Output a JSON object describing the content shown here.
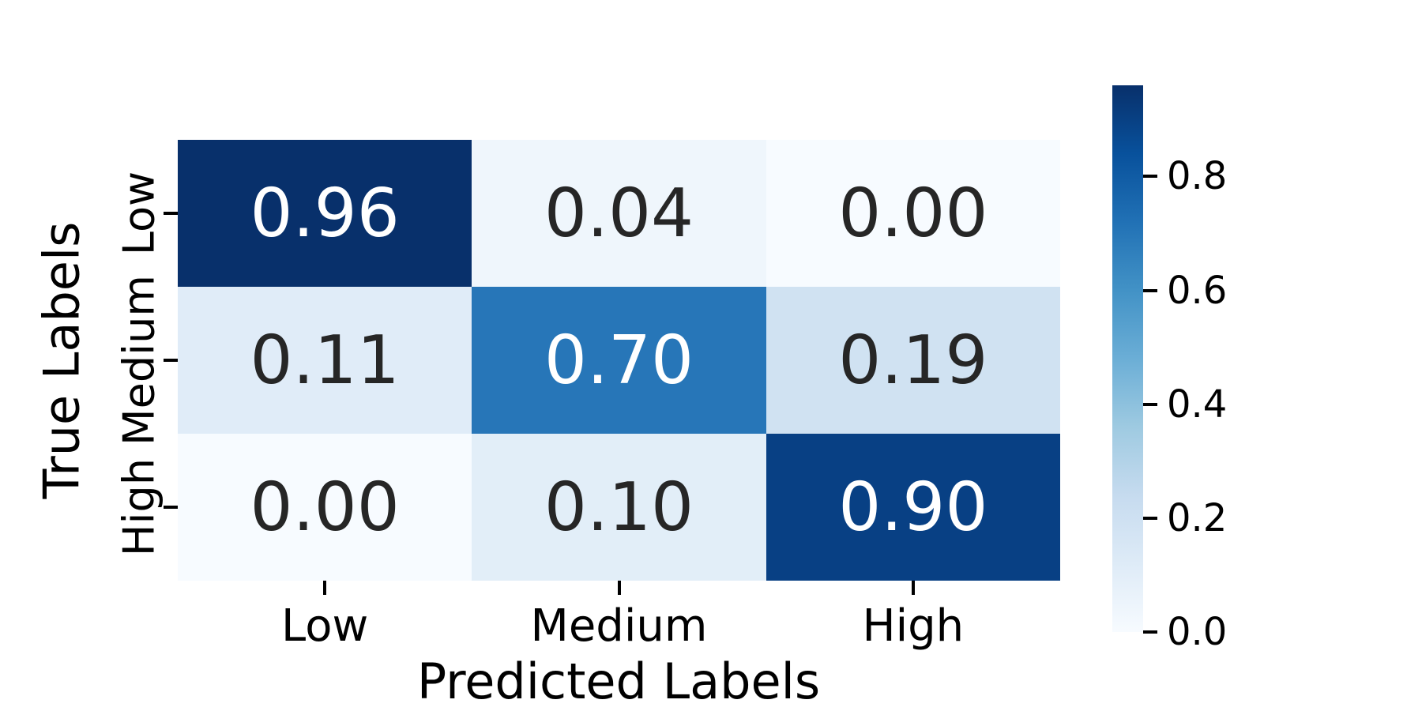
{
  "chart_data": {
    "type": "heatmap",
    "title": "",
    "xlabel": "Predicted Labels",
    "ylabel": "True Labels",
    "x_categories": [
      "Low",
      "Medium",
      "High"
    ],
    "y_categories": [
      "Low",
      "Medium",
      "High"
    ],
    "values": [
      [
        0.96,
        0.04,
        0.0
      ],
      [
        0.11,
        0.7,
        0.19
      ],
      [
        0.0,
        0.1,
        0.9
      ]
    ],
    "cell_labels": [
      [
        "0.96",
        "0.04",
        "0.00"
      ],
      [
        "0.11",
        "0.70",
        "0.19"
      ],
      [
        "0.00",
        "0.10",
        "0.90"
      ]
    ],
    "colormap": "Blues",
    "vmin": 0.0,
    "vmax": 0.96,
    "colorbar_ticks": [
      {
        "label": "0.8",
        "value": 0.8
      },
      {
        "label": "0.6",
        "value": 0.6
      },
      {
        "label": "0.4",
        "value": 0.4
      },
      {
        "label": "0.2",
        "value": 0.2
      },
      {
        "label": "0.0",
        "value": 0.0
      }
    ],
    "colorbar_position": "right",
    "grid": false,
    "annotated": true
  },
  "colors": {
    "background": "#ffffff",
    "annot_light": "#ffffff",
    "annot_dark": "#262626",
    "axis_text": "#000000",
    "cell_colors": [
      [
        "#08306b",
        "#eff6fc",
        "#f7fbff"
      ],
      [
        "#e0ecf8",
        "#2776b8",
        "#d0e2f2"
      ],
      [
        "#f7fbff",
        "#e2eef8",
        "#084084"
      ]
    ],
    "colormap_stops": [
      "#f7fbff",
      "#deebf7",
      "#c6dbef",
      "#9ecae1",
      "#6baed6",
      "#4292c6",
      "#2171b5",
      "#08519c",
      "#08306b"
    ]
  }
}
